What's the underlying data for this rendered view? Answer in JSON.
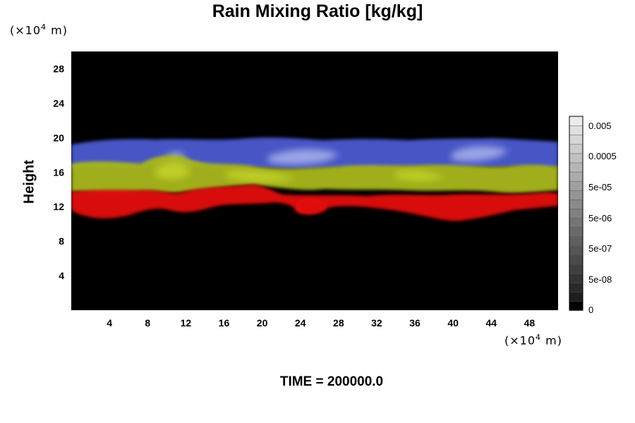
{
  "title": "Rain Mixing Ratio [kg/kg]",
  "y_unit": {
    "prefix": "(×10",
    "exp": "4",
    "suffix": " m)"
  },
  "x_unit": {
    "prefix": "(×10",
    "exp": "4",
    "suffix": " m)"
  },
  "ylabel": "Height",
  "time_label": "TIME = 200000.0",
  "chart_data": {
    "type": "heatmap",
    "title": "Rain Mixing Ratio [kg/kg]",
    "xlabel": "",
    "ylabel": "Height",
    "x_unit": "×10^4 m",
    "y_unit": "×10^4 m",
    "xlim": [
      0,
      51
    ],
    "ylim": [
      0,
      30
    ],
    "x_ticks": [
      "4",
      "8",
      "12",
      "16",
      "20",
      "24",
      "28",
      "32",
      "36",
      "40",
      "44",
      "48"
    ],
    "y_ticks": [
      "4",
      "8",
      "12",
      "16",
      "20",
      "24",
      "28"
    ],
    "background_color": "#000000",
    "layers": [
      {
        "name_color": "blue",
        "color": "#5a66d8",
        "y_range": [
          16.5,
          20
        ]
      },
      {
        "name_color": "yellow-green",
        "color": "#a8b81a",
        "y_range": [
          13.5,
          17
        ]
      },
      {
        "name_color": "red",
        "color": "#e01010",
        "y_range": [
          10.5,
          14
        ]
      }
    ],
    "colorbar": {
      "labels": [
        "0.005",
        "0.0005",
        "5e-05",
        "5e-06",
        "5e-07",
        "5e-08",
        "0"
      ],
      "scale": "log",
      "colors": "grayscale"
    }
  }
}
